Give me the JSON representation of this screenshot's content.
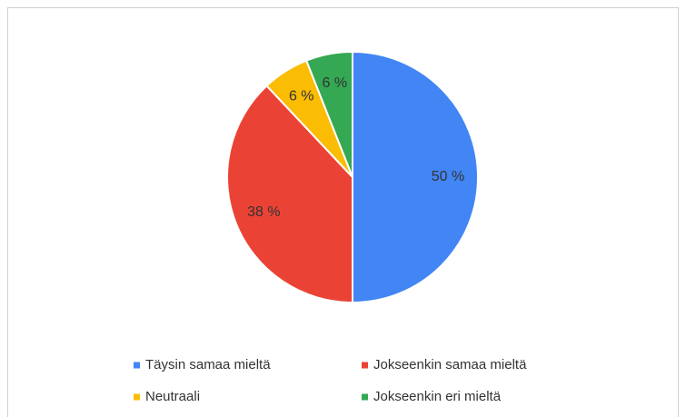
{
  "chart_data": {
    "type": "pie",
    "categories": [
      "Täysin samaa mieltä",
      "Jokseenkin samaa mieltä",
      "Neutraali",
      "Jokseenkin eri mieltä"
    ],
    "values": [
      50,
      38,
      6,
      6
    ],
    "value_labels": [
      "50 %",
      "38 %",
      "6 %",
      "6 %"
    ],
    "colors": [
      "#4285f4",
      "#ea4335",
      "#fbbc04",
      "#34a853"
    ],
    "legend": "bottom"
  }
}
